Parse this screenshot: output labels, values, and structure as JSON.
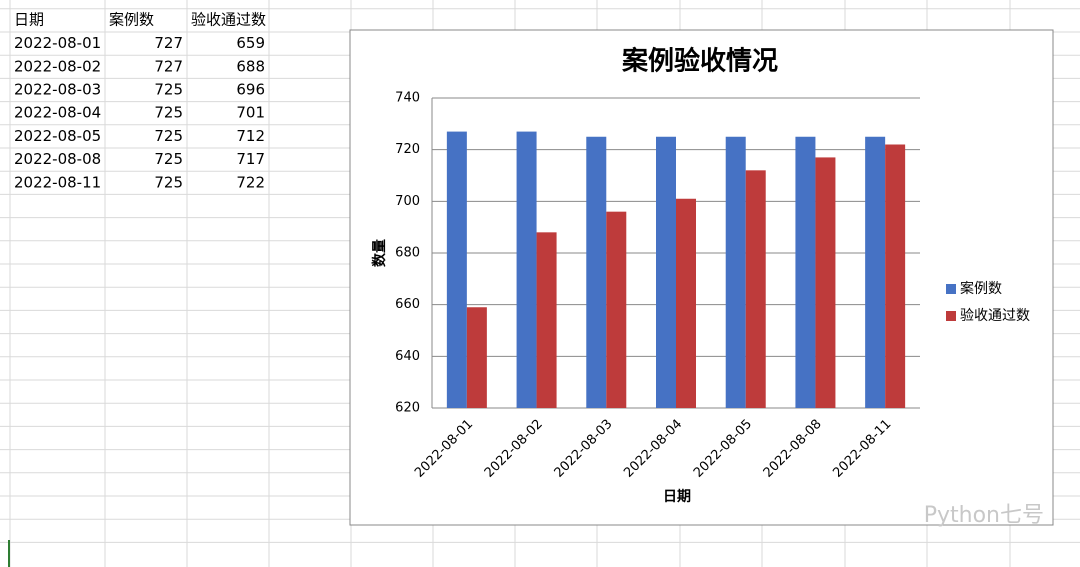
{
  "table": {
    "columns": [
      "日期",
      "案例数",
      "验收通过数"
    ],
    "rows": [
      [
        "2022-08-01",
        727,
        659
      ],
      [
        "2022-08-02",
        727,
        688
      ],
      [
        "2022-08-03",
        725,
        696
      ],
      [
        "2022-08-04",
        725,
        701
      ],
      [
        "2022-08-05",
        725,
        712
      ],
      [
        "2022-08-08",
        725,
        717
      ],
      [
        "2022-08-11",
        725,
        722
      ]
    ]
  },
  "chart_data": {
    "type": "bar",
    "title": "案例验收情况",
    "x_label": "日期",
    "y_label": "数量",
    "categories": [
      "2022-08-01",
      "2022-08-02",
      "2022-08-03",
      "2022-08-04",
      "2022-08-05",
      "2022-08-08",
      "2022-08-11"
    ],
    "series": [
      {
        "name": "案例数",
        "color": "#4672c4",
        "values": [
          727,
          727,
          725,
          725,
          725,
          725,
          725
        ]
      },
      {
        "name": "验收通过数",
        "color": "#be3b3b",
        "values": [
          659,
          688,
          696,
          701,
          712,
          717,
          722
        ]
      }
    ],
    "ylim": [
      620,
      740
    ],
    "yticks": [
      620,
      640,
      660,
      680,
      700,
      720,
      740
    ],
    "grid": true,
    "legend": "right"
  },
  "watermark": "Python七号"
}
